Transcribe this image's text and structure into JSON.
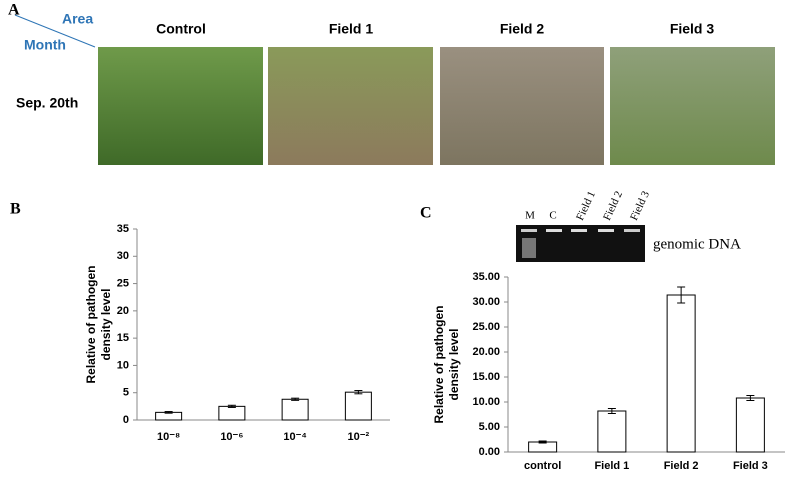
{
  "panel_a": {
    "label": "A",
    "column_header": "Area",
    "row_header": "Month",
    "columns": [
      "Control",
      "Field 1",
      "Field 2",
      "Field 3"
    ],
    "rows": [
      "Sep. 20th"
    ]
  },
  "gel": {
    "lanes": [
      "M",
      "C",
      "Field 1",
      "Field 2",
      "Field 3"
    ],
    "caption": "genomic DNA"
  },
  "chart_data": [
    {
      "type": "bar",
      "panel": "B",
      "ylabel": [
        "Relative of pathogen",
        "density  level"
      ],
      "categories": [
        "10⁻⁸",
        "10⁻⁶",
        "10⁻⁴",
        "10⁻²"
      ],
      "values": [
        1.4,
        2.5,
        3.8,
        5.1
      ],
      "errors": [
        0.15,
        0.2,
        0.2,
        0.3
      ],
      "color": "#ffffff",
      "ylim": [
        0,
        35
      ],
      "yticks": [
        0,
        5,
        10,
        15,
        20,
        25,
        30,
        35
      ],
      "grid": false
    },
    {
      "type": "bar",
      "panel": "C",
      "ylabel": [
        "Relative of pathogen",
        "density level"
      ],
      "categories": [
        "control",
        "Field 1",
        "Field 2",
        "Field 3"
      ],
      "values": [
        2.0,
        8.2,
        31.4,
        10.8
      ],
      "errors": [
        0.2,
        0.5,
        1.6,
        0.5
      ],
      "color": "#ffffff",
      "ylim": [
        0,
        35
      ],
      "yticks": [
        {
          "value": 0,
          "label": "0.00"
        },
        {
          "value": 5,
          "label": "5.00"
        },
        {
          "value": 10,
          "label": "10.00"
        },
        {
          "value": 15,
          "label": "15.00"
        },
        {
          "value": 20,
          "label": "20.00"
        },
        {
          "value": 25,
          "label": "25.00"
        },
        {
          "value": 30,
          "label": "30.00"
        },
        {
          "value": 35,
          "label": "35.00"
        }
      ],
      "grid": false
    }
  ]
}
